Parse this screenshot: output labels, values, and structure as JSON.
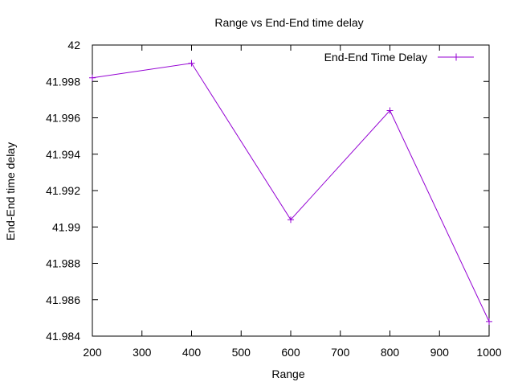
{
  "chart_data": {
    "type": "line",
    "title": "Range vs End-End time delay",
    "xlabel": "Range",
    "ylabel": "End-End time delay",
    "xlim": [
      200,
      1000
    ],
    "ylim": [
      41.984,
      42
    ],
    "x_ticks": [
      200,
      300,
      400,
      500,
      600,
      700,
      800,
      900,
      1000
    ],
    "y_ticks": [
      41.984,
      41.986,
      41.988,
      41.99,
      41.992,
      41.994,
      41.996,
      41.998,
      42
    ],
    "x_tick_labels": [
      "200",
      "300",
      "400",
      "500",
      "600",
      "700",
      "800",
      "900",
      "1000"
    ],
    "y_tick_labels": [
      "41.984",
      "41.986",
      "41.988",
      "41.99",
      "41.992",
      "41.994",
      "41.996",
      "41.998",
      "42"
    ],
    "grid": false,
    "legend_position": "top-right",
    "series": [
      {
        "name": "End-End Time Delay",
        "color": "#9400d3",
        "marker": "plus",
        "x": [
          200,
          400,
          600,
          800,
          1000
        ],
        "y": [
          41.9982,
          41.999,
          41.9904,
          41.9964,
          41.9848
        ]
      }
    ]
  }
}
